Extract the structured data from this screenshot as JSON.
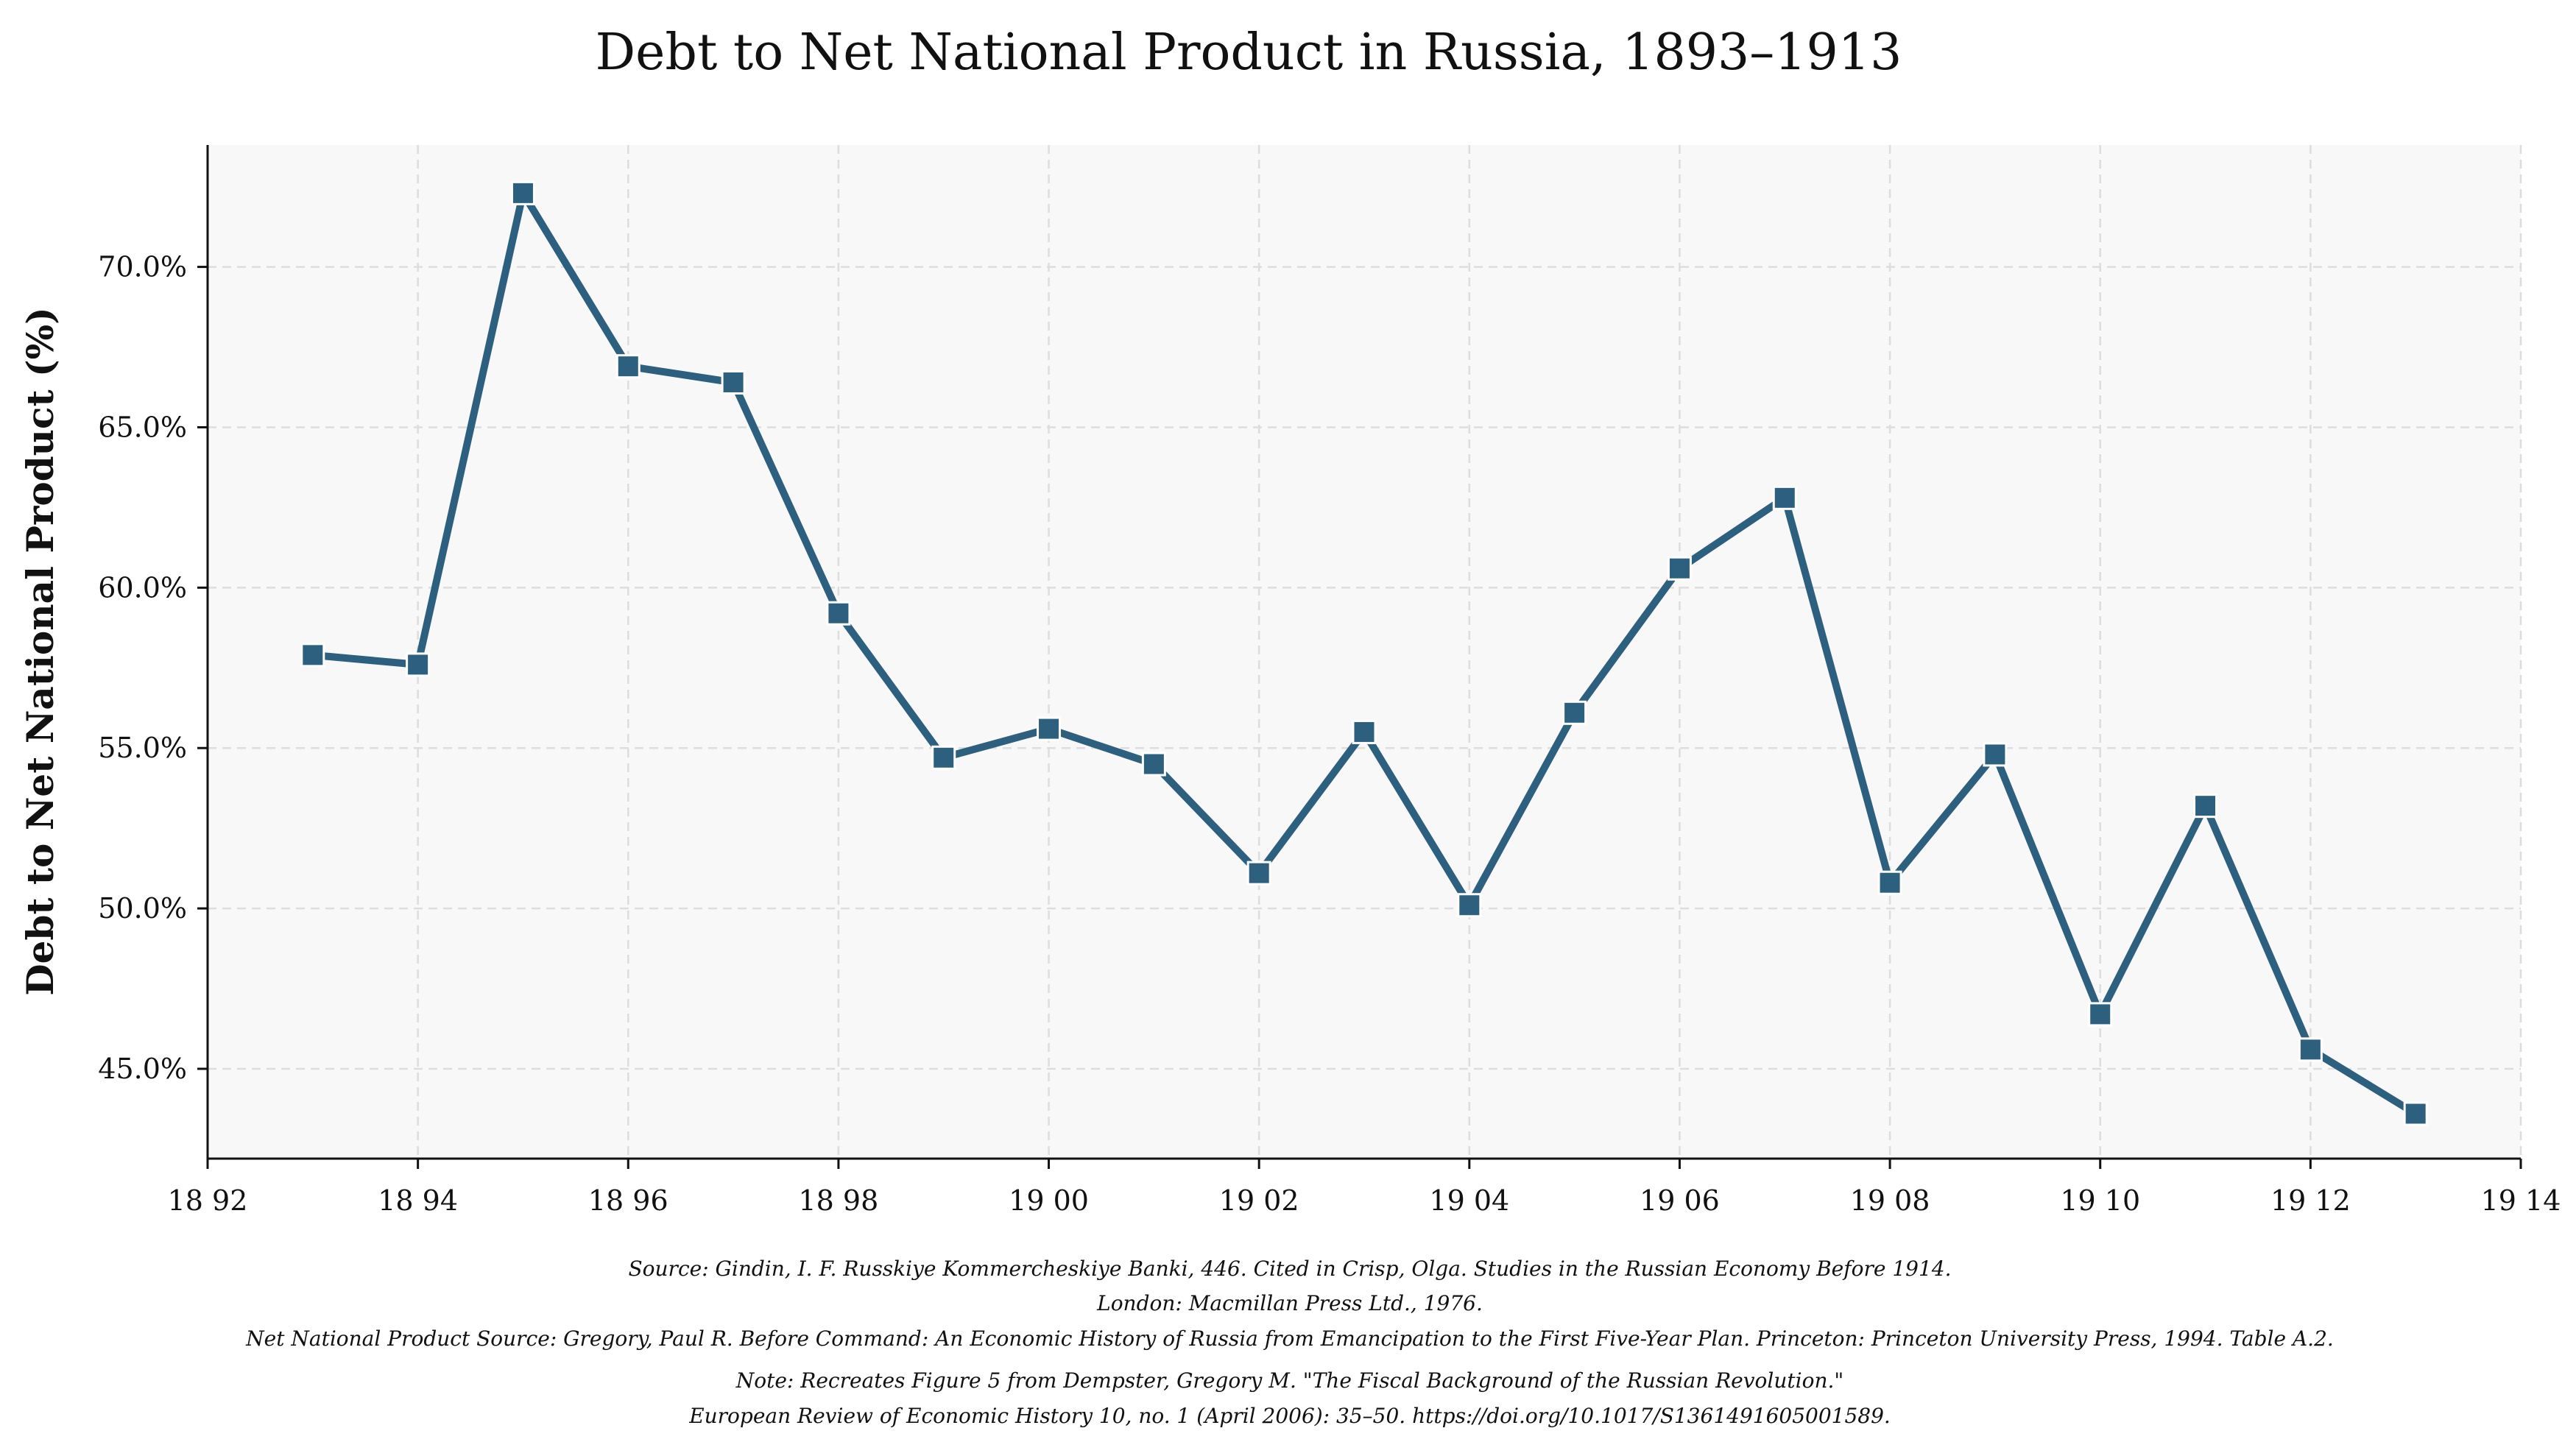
{
  "chart_data": {
    "type": "line",
    "title": "Debt to Net National Product in Russia, 1893–1913",
    "xlabel": "",
    "ylabel": "Debt to Net National Product (%)",
    "xlim": [
      1892,
      1914
    ],
    "ylim": [
      42.2,
      73.8
    ],
    "grid": true,
    "x": [
      1893,
      1894,
      1895,
      1896,
      1897,
      1898,
      1899,
      1900,
      1901,
      1902,
      1903,
      1904,
      1905,
      1906,
      1907,
      1908,
      1909,
      1910,
      1911,
      1912,
      1913
    ],
    "series": [
      {
        "name": "Debt to Net National Product",
        "color": "#2d5f7e",
        "marker": "square",
        "values": [
          57.9,
          57.6,
          72.3,
          66.9,
          66.4,
          59.2,
          54.7,
          55.6,
          54.5,
          51.1,
          55.5,
          50.1,
          56.1,
          60.6,
          62.8,
          50.8,
          54.8,
          46.7,
          53.2,
          45.6,
          43.6
        ]
      }
    ],
    "xticks": [
      1892,
      1894,
      1896,
      1898,
      1900,
      1902,
      1904,
      1906,
      1908,
      1910,
      1912,
      1914
    ],
    "xtick_labels": [
      "18 92",
      "18 94",
      "18 96",
      "18 98",
      "19 00",
      "19 02",
      "19 04",
      "19 06",
      "19 08",
      "19 10",
      "19 12",
      "19 14"
    ],
    "yticks": [
      45,
      50,
      55,
      60,
      65,
      70
    ],
    "ytick_labels": [
      "45.0%",
      "50.0%",
      "55.0%",
      "60.0%",
      "65.0%",
      "70.0%"
    ],
    "notes": [
      "Source: Gindin, I. F. Russkiye Kommercheskiye Banki, 446. Cited in Crisp, Olga. Studies in the Russian Economy Before 1914.",
      "London: Macmillan Press Ltd., 1976.",
      "Net National Product Source: Gregory, Paul R. Before Command: An Economic History of Russia from Emancipation to the First Five-Year Plan. Princeton: Princeton University Press, 1994. Table A.2.",
      "Note: Recreates Figure 5 from Dempster, Gregory M. \"The Fiscal Background of the Russian Revolution.\"",
      "European Review of Economic History 10, no. 1 (April 2006): 35–50. https://doi.org/10.1017/S1361491605001589."
    ],
    "colors": {
      "plot_background": "#f8f8f8",
      "grid": "#dddddd",
      "axis": "#111111",
      "marker_edge": "#ffffff"
    }
  }
}
